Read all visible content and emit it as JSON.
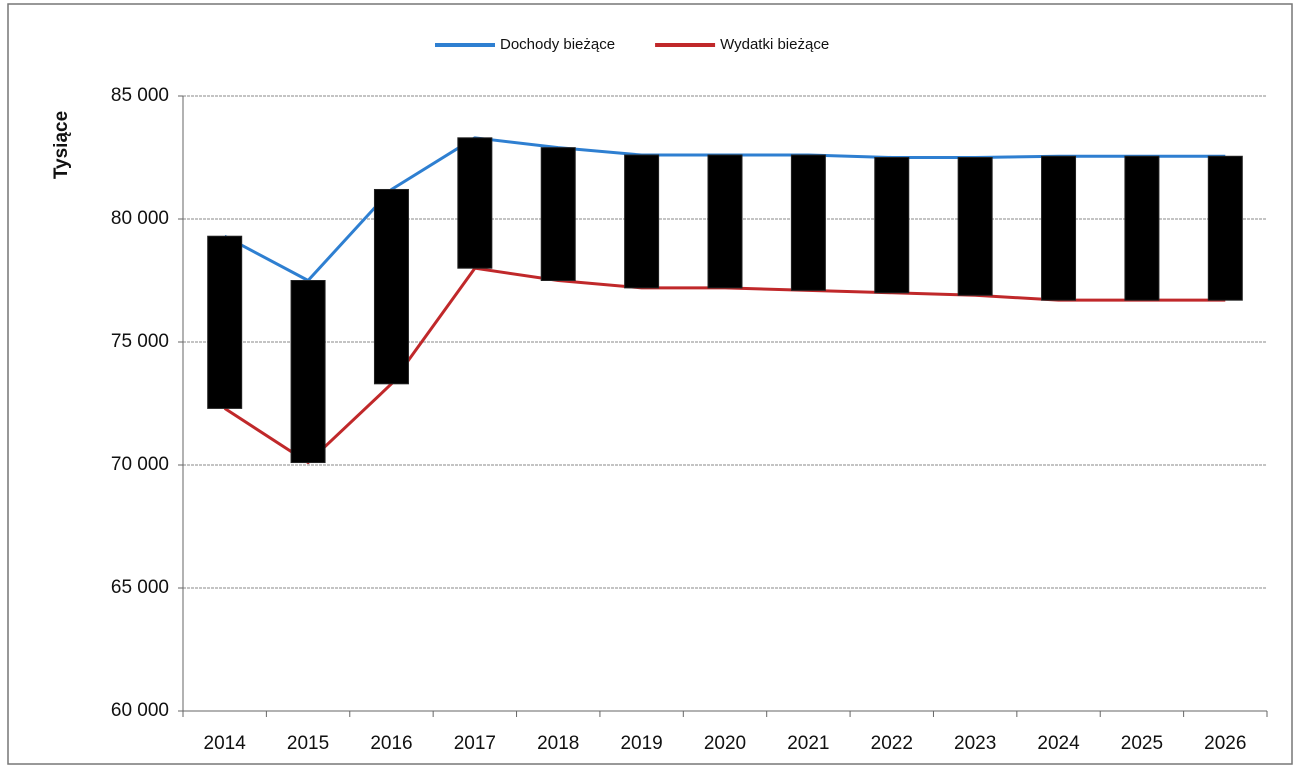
{
  "chart_data": {
    "type": "line",
    "y_label": "Tysiące",
    "categories": [
      "2014",
      "2015",
      "2016",
      "2017",
      "2018",
      "2019",
      "2020",
      "2021",
      "2022",
      "2023",
      "2024",
      "2025",
      "2026"
    ],
    "series": [
      {
        "name": "Dochody bieżące",
        "color": "#2e7fd1",
        "values": [
          79300,
          77500,
          81200,
          83300,
          82900,
          82600,
          82600,
          82600,
          82500,
          82500,
          82550,
          82550,
          82550
        ]
      },
      {
        "name": "Wydatki bieżące",
        "color": "#c0282a",
        "values": [
          72300,
          70100,
          73300,
          78000,
          77500,
          77200,
          77200,
          77100,
          77000,
          76900,
          76700,
          76700,
          76700
        ]
      }
    ],
    "up_down_bars": true,
    "bar_color": "#000000",
    "ylim": [
      60000,
      85000
    ],
    "yticks": [
      {
        "value": 60000,
        "label": "60 000"
      },
      {
        "value": 65000,
        "label": "65 000"
      },
      {
        "value": 70000,
        "label": "70 000"
      },
      {
        "value": 75000,
        "label": "75 000"
      },
      {
        "value": 80000,
        "label": "80 000"
      },
      {
        "value": 85000,
        "label": "85 000"
      }
    ],
    "grid": true,
    "legend": "top"
  }
}
